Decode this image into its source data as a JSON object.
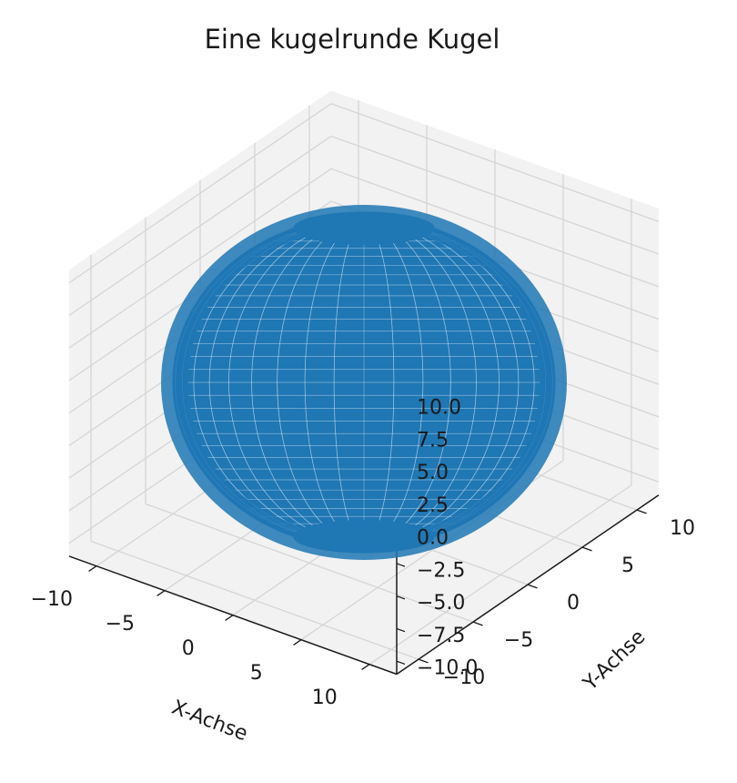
{
  "chart_data": {
    "type": "surface-3d-wireframe",
    "title": "Eine kugelrunde Kugel",
    "xlabel": "X-Achse",
    "ylabel": "Y-Achse",
    "zlabel": "",
    "xlim": [
      -12,
      12
    ],
    "ylim": [
      -12,
      12
    ],
    "zlim": [
      -11,
      11
    ],
    "x_ticks": [
      -10,
      -5,
      0,
      5,
      10
    ],
    "y_ticks": [
      -10,
      -5,
      0,
      5,
      10
    ],
    "z_ticks": [
      -10.0,
      -7.5,
      -5.0,
      -2.5,
      0.0,
      2.5,
      5.0,
      7.5,
      10.0
    ],
    "x_tick_labels": [
      "−10",
      "−5",
      "0",
      "5",
      "10"
    ],
    "y_tick_labels": [
      "−10",
      "−5",
      "0",
      "5",
      "10"
    ],
    "z_tick_labels": [
      "−10.0",
      "−7.5",
      "−5.0",
      "−2.5",
      "0.0",
      "2.5",
      "5.0",
      "7.5",
      "10.0"
    ],
    "surface": {
      "shape": "sphere",
      "center": [
        0,
        0,
        0
      ],
      "radius": 10,
      "meridians": 40,
      "parallels": 40,
      "color": "#1f77b4"
    },
    "grid": true,
    "pane_color": "#f2f2f2",
    "grid_color": "#d5d5d5"
  }
}
